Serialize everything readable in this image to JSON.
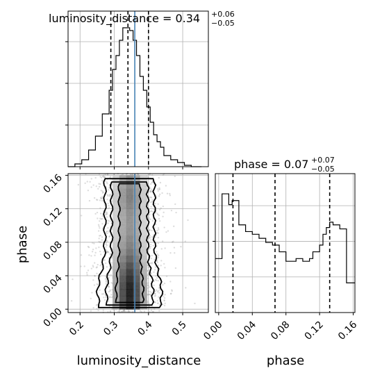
{
  "chart_data": {
    "type": "corner",
    "panels": [
      {
        "kind": "hist1d",
        "param": "luminosity_distance",
        "title_name": "luminosity_distance",
        "title_value": "0.34",
        "title_plus": "+0.06",
        "title_minus": "−0.05",
        "xlim": [
          0.165,
          0.575
        ],
        "bin_edges": [
          0.165,
          0.185,
          0.205,
          0.225,
          0.245,
          0.265,
          0.285,
          0.295,
          0.305,
          0.315,
          0.325,
          0.335,
          0.345,
          0.355,
          0.365,
          0.375,
          0.385,
          0.395,
          0.405,
          0.415,
          0.425,
          0.435,
          0.445,
          0.465,
          0.485,
          0.505,
          0.525,
          0.555
        ],
        "counts": [
          0,
          2,
          5,
          12,
          22,
          38,
          55,
          70,
          80,
          91,
          100,
          100,
          98,
          91,
          80,
          65,
          55,
          43,
          32,
          23,
          18,
          14,
          8,
          5,
          3,
          1,
          0
        ],
        "quantiles": [
          0.29,
          0.34,
          0.4
        ],
        "truth": 0.36
      },
      {
        "kind": "hist1d",
        "param": "phase",
        "title_name": "phase",
        "title_value": "0.07",
        "title_plus": "+0.07",
        "title_minus": "−0.05",
        "xlim": [
          -0.004,
          0.162
        ],
        "bin_edges": [
          -0.004,
          0.0,
          0.004,
          0.008,
          0.012,
          0.016,
          0.02,
          0.024,
          0.028,
          0.032,
          0.036,
          0.04,
          0.044,
          0.048,
          0.052,
          0.056,
          0.06,
          0.064,
          0.068,
          0.072,
          0.076,
          0.08,
          0.084,
          0.088,
          0.092,
          0.096,
          0.1,
          0.104,
          0.108,
          0.112,
          0.116,
          0.12,
          0.124,
          0.128,
          0.132,
          0.136,
          0.14,
          0.144,
          0.148,
          0.152,
          0.156,
          0.16,
          0.162
        ],
        "counts": [
          40,
          40,
          88,
          88,
          80,
          83,
          83,
          65,
          65,
          60,
          60,
          58,
          58,
          55,
          55,
          52,
          52,
          50,
          50,
          45,
          45,
          38,
          38,
          38,
          40,
          40,
          38,
          38,
          40,
          45,
          45,
          50,
          58,
          63,
          67,
          65,
          65,
          62,
          62,
          22,
          22,
          22
        ],
        "quantiles": [
          0.017,
          0.067,
          0.132
        ]
      },
      {
        "kind": "hist2d",
        "xparam": "luminosity_distance",
        "yparam": "phase",
        "xlim": [
          0.165,
          0.575
        ],
        "ylim": [
          -0.004,
          0.162
        ],
        "truth_x": 0.36,
        "x_center": 0.345,
        "y_center": 0.02
      }
    ],
    "axes": {
      "xlabel_left": "luminosity_distance",
      "xlabel_right": "phase",
      "ylabel_left": "phase",
      "lumi_ticks": [
        "0.2",
        "0.3",
        "0.4",
        "0.5"
      ],
      "lumi_tick_values": [
        0.2,
        0.3,
        0.4,
        0.5
      ],
      "phase_ticks": [
        "0.00",
        "0.04",
        "0.08",
        "0.12",
        "0.16"
      ],
      "phase_tick_values": [
        0.0,
        0.04,
        0.08,
        0.12,
        0.16
      ]
    },
    "grid": true,
    "colors": {
      "line": "#000000",
      "truth": "#4682b4",
      "grid": "#b0b0b0",
      "scatter": "#9e9e9e"
    }
  }
}
